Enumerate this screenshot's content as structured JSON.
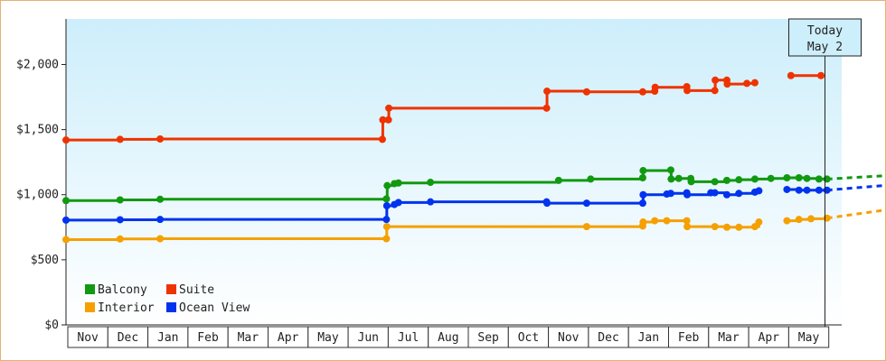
{
  "chart_data": {
    "type": "line",
    "title": "",
    "xlabel": "",
    "ylabel": "",
    "ylim": [
      0,
      2350
    ],
    "yticks": [
      0,
      500,
      1000,
      1500,
      2000
    ],
    "ytick_labels": [
      "$0",
      "$500",
      "$1,000",
      "$1,500",
      "$2,000"
    ],
    "x_axis_type": "date",
    "x_range": [
      "2020-11-01",
      "2021-05-31"
    ],
    "month_labels": [
      "Nov",
      "Dec",
      "Jan",
      "Feb",
      "Mar",
      "Apr",
      "May",
      "Jun",
      "Jul",
      "Aug",
      "Sep",
      "Oct",
      "Nov",
      "Dec",
      "Jan",
      "Feb",
      "Mar",
      "Apr",
      "May"
    ],
    "background": "light-blue gradient",
    "today_marker": {
      "line1": "Today",
      "line2": "May 2"
    },
    "legend": {
      "position": "bottom-left",
      "columns": 2
    },
    "series": [
      {
        "name": "Balcony",
        "color": "#119911",
        "points": [
          [
            0,
            955
          ],
          [
            1.35,
            960
          ],
          [
            2.35,
            965
          ],
          [
            8,
            968
          ],
          [
            8.02,
            1070
          ],
          [
            8.2,
            1085
          ],
          [
            8.3,
            1090
          ],
          [
            9.1,
            1095
          ],
          [
            12.3,
            1110
          ],
          [
            13.1,
            1120
          ],
          [
            14.4,
            1130
          ],
          [
            14.41,
            1185
          ],
          [
            15.1,
            1190
          ],
          [
            15.11,
            1120
          ],
          [
            15.3,
            1125
          ],
          [
            15.6,
            1125
          ],
          [
            15.61,
            1100
          ],
          [
            16.2,
            1100
          ],
          [
            16.5,
            1110
          ],
          [
            16.8,
            1115
          ],
          [
            17.2,
            1120
          ],
          [
            17.6,
            1125
          ],
          [
            18.0,
            1130
          ],
          [
            18.3,
            1130
          ],
          [
            18.5,
            1125
          ],
          [
            18.8,
            1120
          ],
          [
            19.0,
            1120
          ]
        ],
        "projection": [
          [
            19.0,
            1120
          ],
          [
            20.4,
            1145
          ]
        ]
      },
      {
        "name": "Suite",
        "color": "#ee3300",
        "points": [
          [
            0,
            1420
          ],
          [
            1.35,
            1425
          ],
          [
            2.35,
            1428
          ],
          [
            7.9,
            1425
          ],
          [
            7.91,
            1575
          ],
          [
            8.05,
            1575
          ],
          [
            8.06,
            1665
          ],
          [
            12.0,
            1665
          ],
          [
            12.01,
            1795
          ],
          [
            13.0,
            1790
          ],
          [
            14.4,
            1790
          ],
          [
            14.7,
            1795
          ],
          [
            14.71,
            1825
          ],
          [
            15.5,
            1830
          ],
          [
            15.51,
            1800
          ],
          [
            16.2,
            1800
          ],
          [
            16.21,
            1880
          ],
          [
            16.5,
            1880
          ],
          [
            16.51,
            1850
          ],
          [
            17.0,
            1855
          ],
          [
            17.2,
            1860
          ],
          [
            17.21,
            null
          ],
          [
            18.1,
            1915
          ],
          [
            18.85,
            1915
          ]
        ],
        "projection": []
      },
      {
        "name": "Interior",
        "color": "#f5a000",
        "points": [
          [
            0,
            655
          ],
          [
            1.35,
            660
          ],
          [
            2.35,
            662
          ],
          [
            8,
            662
          ],
          [
            8.01,
            755
          ],
          [
            13.0,
            755
          ],
          [
            14.4,
            760
          ],
          [
            14.41,
            790
          ],
          [
            14.7,
            800
          ],
          [
            15.0,
            800
          ],
          [
            15.5,
            800
          ],
          [
            15.51,
            755
          ],
          [
            16.2,
            755
          ],
          [
            16.5,
            750
          ],
          [
            16.8,
            750
          ],
          [
            17.2,
            755
          ],
          [
            17.3,
            790
          ],
          [
            17.31,
            null
          ],
          [
            18.0,
            800
          ],
          [
            18.3,
            810
          ],
          [
            18.6,
            815
          ],
          [
            19.0,
            820
          ]
        ],
        "projection": [
          [
            19.0,
            820
          ],
          [
            20.4,
            880
          ]
        ]
      },
      {
        "name": "Ocean View",
        "color": "#0033ee",
        "points": [
          [
            0,
            805
          ],
          [
            1.35,
            808
          ],
          [
            2.35,
            810
          ],
          [
            8,
            810
          ],
          [
            8.01,
            915
          ],
          [
            8.2,
            925
          ],
          [
            8.3,
            940
          ],
          [
            9.1,
            945
          ],
          [
            12.0,
            945
          ],
          [
            12.01,
            935
          ],
          [
            13.0,
            935
          ],
          [
            14.4,
            935
          ],
          [
            14.41,
            1000
          ],
          [
            15.0,
            1005
          ],
          [
            15.1,
            1010
          ],
          [
            15.5,
            1015
          ],
          [
            15.51,
            1000
          ],
          [
            16.1,
            1015
          ],
          [
            16.2,
            1015
          ],
          [
            16.5,
            1000
          ],
          [
            16.8,
            1010
          ],
          [
            17.2,
            1020
          ],
          [
            17.3,
            1030
          ],
          [
            17.31,
            null
          ],
          [
            18.0,
            1040
          ],
          [
            18.3,
            1035
          ],
          [
            18.5,
            1035
          ],
          [
            18.8,
            1035
          ],
          [
            19.0,
            1035
          ]
        ],
        "projection": [
          [
            19.0,
            1035
          ],
          [
            20.4,
            1070
          ]
        ]
      }
    ]
  }
}
